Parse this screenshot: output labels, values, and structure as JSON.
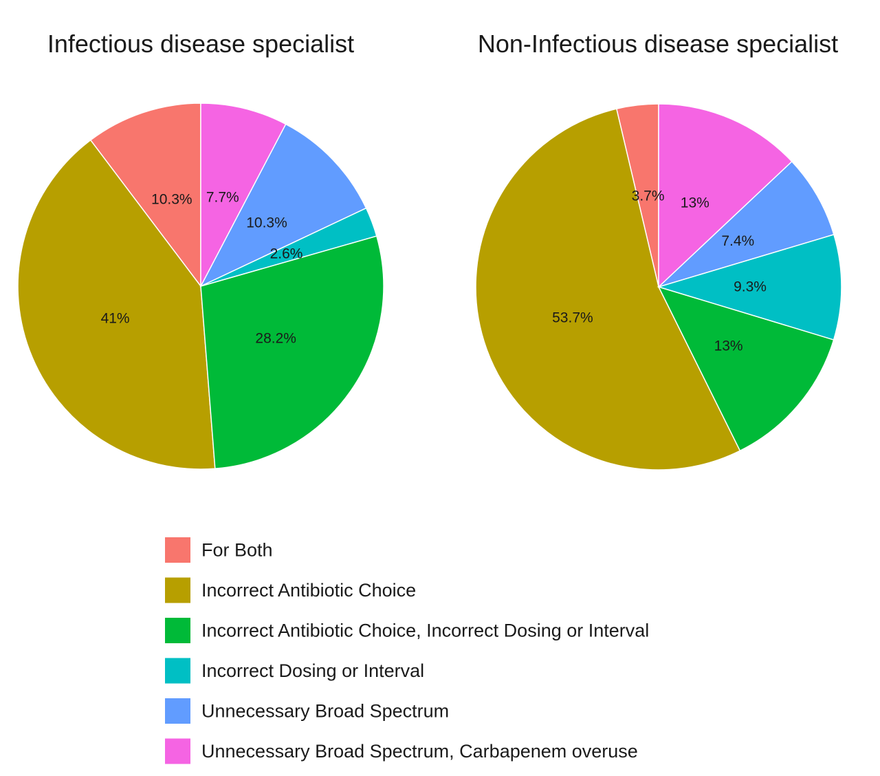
{
  "chart_data": [
    {
      "type": "pie",
      "title": "Infectious disease specialist",
      "slices": [
        {
          "label": "For Both",
          "value": 10.3,
          "value_label": "10.3%"
        },
        {
          "label": "Incorrect Antibiotic Choice",
          "value": 41,
          "value_label": "41%"
        },
        {
          "label": "Incorrect Antibiotic Choice, Incorrect Dosing or Interval",
          "value": 28.2,
          "value_label": "28.2%"
        },
        {
          "label": "Incorrect Dosing or Interval",
          "value": 2.6,
          "value_label": "2.6%"
        },
        {
          "label": "Unnecessary Broad Spectrum",
          "value": 10.3,
          "value_label": "10.3%"
        },
        {
          "label": "Unnecessary Broad Spectrum, Carbapenem overuse",
          "value": 7.7,
          "value_label": "7.7%"
        }
      ]
    },
    {
      "type": "pie",
      "title": "Non-Infectious disease specialist",
      "slices": [
        {
          "label": "For Both",
          "value": 3.7,
          "value_label": "3.7%"
        },
        {
          "label": "Incorrect Antibiotic Choice",
          "value": 53.7,
          "value_label": "53.7%"
        },
        {
          "label": "Incorrect Antibiotic Choice, Incorrect Dosing or Interval",
          "value": 13,
          "value_label": "13%"
        },
        {
          "label": "Incorrect Dosing or Interval",
          "value": 9.3,
          "value_label": "9.3%"
        },
        {
          "label": "Unnecessary Broad Spectrum",
          "value": 7.4,
          "value_label": "7.4%"
        },
        {
          "label": "Unnecessary Broad Spectrum, Carbapenem overuse",
          "value": 13,
          "value_label": "13%"
        }
      ]
    }
  ],
  "legend": {
    "placement": "bottom",
    "items": [
      {
        "label": "For Both",
        "color": "#F8766D"
      },
      {
        "label": "Incorrect Antibiotic Choice",
        "color": "#B79F00"
      },
      {
        "label": "Incorrect Antibiotic Choice, Incorrect Dosing or Interval",
        "color": "#00BA38"
      },
      {
        "label": "Incorrect Dosing or Interval",
        "color": "#00BFC4"
      },
      {
        "label": "Unnecessary Broad Spectrum",
        "color": "#619CFF"
      },
      {
        "label": "Unnecessary Broad Spectrum, Carbapenem overuse",
        "color": "#F564E3"
      }
    ]
  }
}
